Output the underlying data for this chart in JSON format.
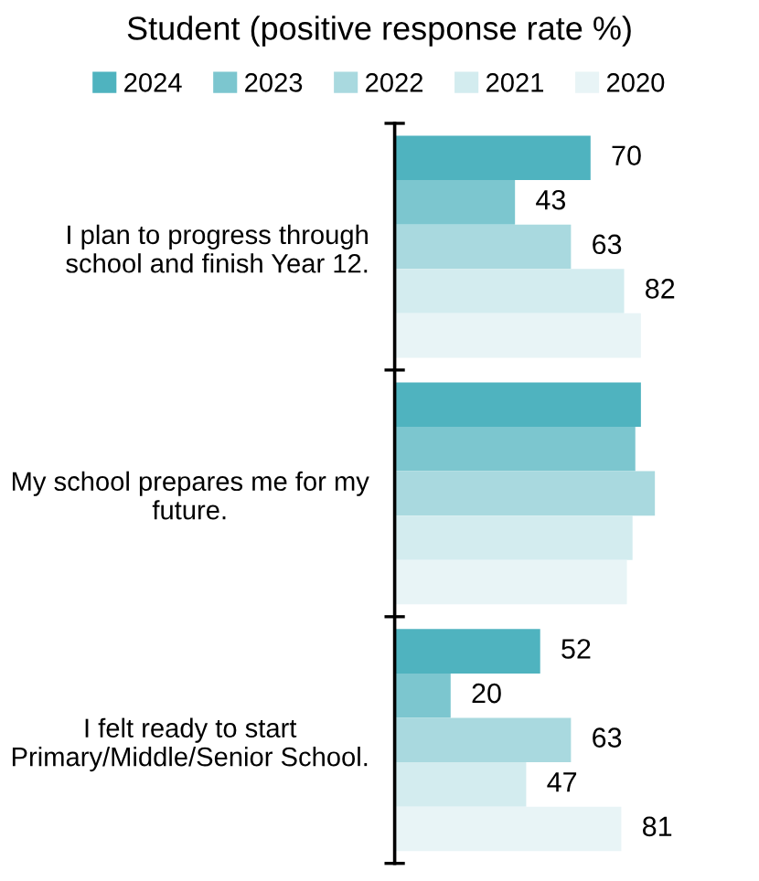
{
  "chart_data": {
    "type": "bar",
    "orientation": "horizontal",
    "title": "Student (positive response rate %)",
    "categories": [
      "I plan to progress through school and finish Year 12.",
      "My school prepares me for my future.",
      "I felt ready to start Primary/Middle/Senior School."
    ],
    "series": [
      {
        "name": "2024",
        "color": "#4fb3bf",
        "values": [
          70,
          88,
          52
        ],
        "value_labels": [
          "70",
          null,
          "52"
        ]
      },
      {
        "name": "2023",
        "color": "#7cc6cf",
        "values": [
          43,
          86,
          20
        ],
        "value_labels": [
          "43",
          null,
          "20"
        ]
      },
      {
        "name": "2022",
        "color": "#a9d9df",
        "values": [
          63,
          93,
          63
        ],
        "value_labels": [
          "63",
          null,
          "63"
        ]
      },
      {
        "name": "2021",
        "color": "#d3ecef",
        "values": [
          82,
          85,
          47
        ],
        "value_labels": [
          "82",
          null,
          "47"
        ]
      },
      {
        "name": "2020",
        "color": "#e8f4f6",
        "values": [
          88,
          83,
          81
        ],
        "value_labels": [
          null,
          null,
          "81"
        ]
      }
    ],
    "tick_labels": "y",
    "legend": "top",
    "grid": false
  }
}
